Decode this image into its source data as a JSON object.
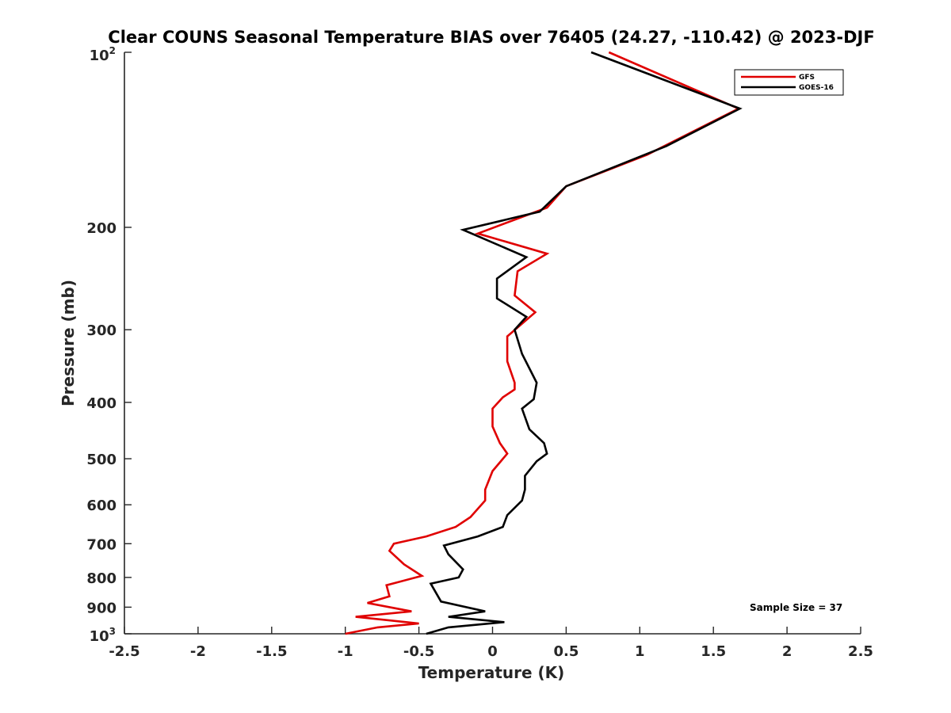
{
  "chart_data": {
    "type": "line",
    "title": "Clear COUNS Seasonal Temperature BIAS over 76405 (24.27, -110.42) @ 2023-DJF",
    "xlabel": "Temperature (K)",
    "ylabel": "Pressure (mb)",
    "xlim": [
      -2.5,
      2.5
    ],
    "ylim": [
      100,
      1000
    ],
    "yscale": "log",
    "x_ticks": [
      -2.5,
      -2,
      -1.5,
      -1,
      -0.5,
      0,
      0.5,
      1,
      1.5,
      2,
      2.5
    ],
    "x_tick_labels": [
      "-2.5",
      "-2",
      "-1.5",
      "-1",
      "-0.5",
      "0",
      "0.5",
      "1",
      "1.5",
      "2",
      "2.5"
    ],
    "y_ticks": [
      200,
      300,
      400,
      500,
      600,
      700,
      800,
      900
    ],
    "y_tick_labels": [
      "200",
      "300",
      "400",
      "500",
      "600",
      "700",
      "800",
      "900"
    ],
    "y_limit_labels": {
      "base": "10",
      "top_exp": "2",
      "bottom_exp": "3"
    },
    "legend_position": "top-right",
    "annotation": "Sample Size = 37",
    "series": [
      {
        "name": "GFS",
        "color": "#e00000",
        "points": [
          [
            0.79,
            100
          ],
          [
            1.67,
            125
          ],
          [
            1.05,
            150
          ],
          [
            0.5,
            170
          ],
          [
            0.37,
            185
          ],
          [
            -0.1,
            205
          ],
          [
            0.37,
            222
          ],
          [
            0.17,
            238
          ],
          [
            0.15,
            262
          ],
          [
            0.29,
            280
          ],
          [
            0.1,
            308
          ],
          [
            0.1,
            340
          ],
          [
            0.15,
            370
          ],
          [
            0.15,
            380
          ],
          [
            0.07,
            392
          ],
          [
            0.0,
            410
          ],
          [
            0.0,
            440
          ],
          [
            0.05,
            470
          ],
          [
            0.1,
            490
          ],
          [
            0.0,
            525
          ],
          [
            -0.05,
            565
          ],
          [
            -0.05,
            590
          ],
          [
            -0.15,
            630
          ],
          [
            -0.25,
            655
          ],
          [
            -0.45,
            680
          ],
          [
            -0.67,
            700
          ],
          [
            -0.7,
            720
          ],
          [
            -0.6,
            760
          ],
          [
            -0.48,
            795
          ],
          [
            -0.72,
            825
          ],
          [
            -0.7,
            862
          ],
          [
            -0.85,
            885
          ],
          [
            -0.55,
            915
          ],
          [
            -0.93,
            935
          ],
          [
            -0.5,
            960
          ],
          [
            -0.78,
            975
          ],
          [
            -1.0,
            1000
          ]
        ]
      },
      {
        "name": "GOES-16",
        "color": "#000000",
        "points": [
          [
            0.67,
            100
          ],
          [
            1.68,
            125
          ],
          [
            1.18,
            145
          ],
          [
            0.5,
            170
          ],
          [
            0.32,
            188
          ],
          [
            -0.2,
            202
          ],
          [
            0.23,
            225
          ],
          [
            0.03,
            245
          ],
          [
            0.03,
            265
          ],
          [
            0.23,
            285
          ],
          [
            0.15,
            300
          ],
          [
            0.2,
            330
          ],
          [
            0.3,
            370
          ],
          [
            0.28,
            395
          ],
          [
            0.2,
            410
          ],
          [
            0.25,
            445
          ],
          [
            0.35,
            470
          ],
          [
            0.37,
            490
          ],
          [
            0.3,
            505
          ],
          [
            0.22,
            535
          ],
          [
            0.22,
            565
          ],
          [
            0.2,
            590
          ],
          [
            0.1,
            625
          ],
          [
            0.07,
            655
          ],
          [
            -0.1,
            680
          ],
          [
            -0.33,
            705
          ],
          [
            -0.3,
            730
          ],
          [
            -0.2,
            775
          ],
          [
            -0.23,
            800
          ],
          [
            -0.42,
            820
          ],
          [
            -0.35,
            880
          ],
          [
            -0.05,
            915
          ],
          [
            -0.3,
            935
          ],
          [
            0.08,
            955
          ],
          [
            -0.3,
            975
          ],
          [
            -0.45,
            1000
          ]
        ]
      }
    ]
  }
}
